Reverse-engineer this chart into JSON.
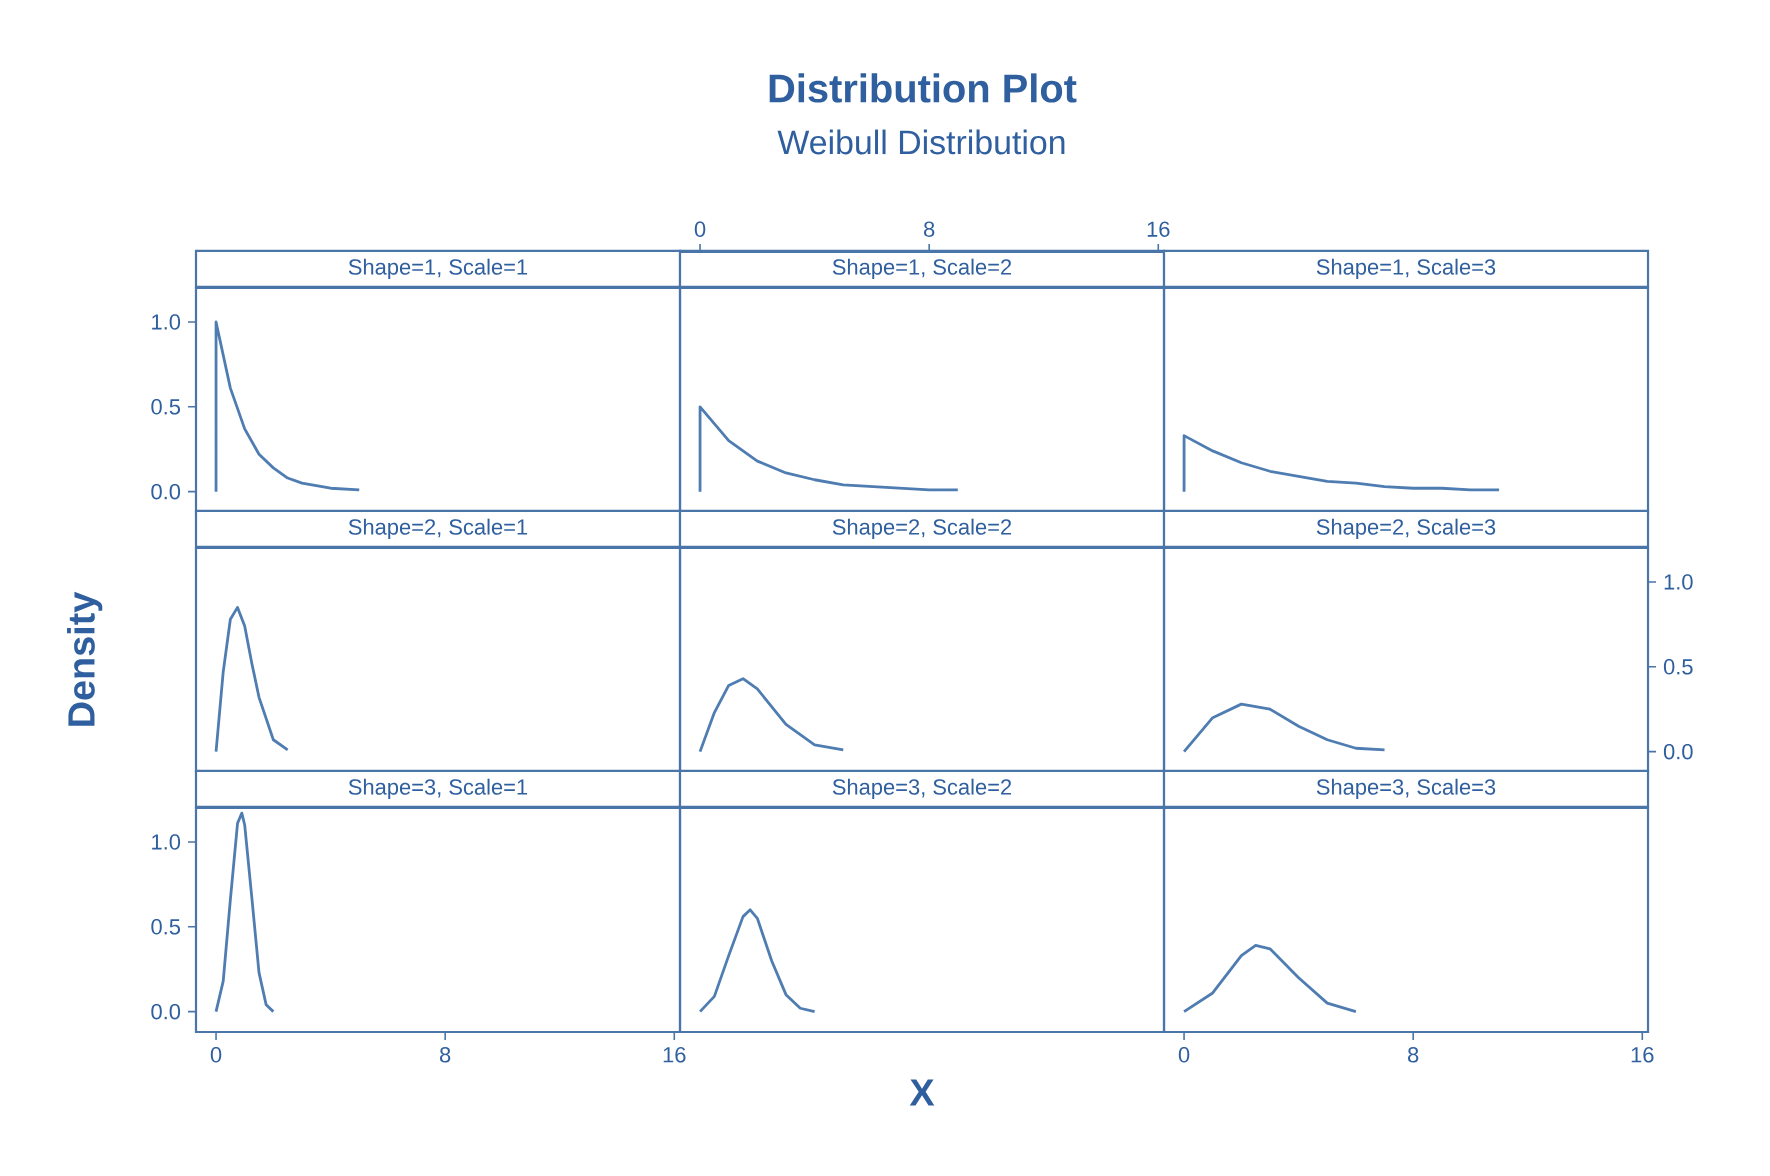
{
  "chart_data": [
    {
      "type": "line",
      "title": "Shape=1, Scale=1",
      "annotations": [
        "Distribution Plot",
        "Weibull Distribution"
      ],
      "x": [
        0,
        0,
        0.5,
        1,
        1.5,
        2,
        2.5,
        3,
        4,
        5
      ],
      "values": [
        0,
        1.0,
        0.61,
        0.37,
        0.22,
        0.14,
        0.08,
        0.05,
        0.02,
        0.01
      ],
      "color": "#4f7db2",
      "xlim": [
        -0.7,
        16.2
      ],
      "ylim": [
        -0.12,
        1.2
      ],
      "yticks": [
        {
          "value": 0,
          "label": "0.0"
        },
        {
          "value": 0.5,
          "label": "0.5"
        },
        {
          "value": 1,
          "label": "1.0"
        }
      ],
      "tick_labels": "y"
    },
    {
      "type": "line",
      "title": "Shape=1, Scale=2",
      "x": [
        0,
        0,
        1,
        2,
        3,
        4,
        5,
        6,
        7,
        8,
        9
      ],
      "values": [
        0,
        0.5,
        0.3,
        0.18,
        0.11,
        0.07,
        0.04,
        0.03,
        0.02,
        0.01,
        0.01
      ],
      "color": "#4f7db2",
      "xlim": [
        -0.7,
        16.2
      ],
      "ylim": [
        -0.12,
        1.2
      ],
      "x2lim": [
        -0.7,
        16.2
      ],
      "x2ticks": [
        0,
        8,
        16
      ],
      "tick_labels": false
    },
    {
      "type": "line",
      "title": "Shape=1, Scale=3",
      "x": [
        0,
        0,
        1,
        2,
        3,
        4,
        5,
        6,
        7,
        8,
        9,
        10,
        11
      ],
      "values": [
        0,
        0.33,
        0.24,
        0.17,
        0.12,
        0.09,
        0.06,
        0.05,
        0.03,
        0.02,
        0.02,
        0.01,
        0.01
      ],
      "color": "#4f7db2",
      "xlim": [
        -0.7,
        16.2
      ],
      "ylim": [
        -0.12,
        1.2
      ],
      "tick_labels": false
    },
    {
      "type": "line",
      "title": "Shape=2, Scale=1",
      "ylabel": "Density",
      "x": [
        0,
        0.25,
        0.5,
        0.75,
        1,
        1.25,
        1.5,
        2,
        2.5
      ],
      "values": [
        0,
        0.47,
        0.78,
        0.85,
        0.74,
        0.52,
        0.32,
        0.07,
        0.01
      ],
      "color": "#4f7db2",
      "xlim": [
        -0.7,
        16.2
      ],
      "ylim": [
        -0.12,
        1.2
      ],
      "tick_labels": false
    },
    {
      "type": "line",
      "title": "Shape=2, Scale=2",
      "x": [
        0,
        0.5,
        1,
        1.5,
        2,
        3,
        4,
        5
      ],
      "values": [
        0,
        0.23,
        0.39,
        0.43,
        0.37,
        0.16,
        0.04,
        0.01
      ],
      "color": "#4f7db2",
      "xlim": [
        -0.7,
        16.2
      ],
      "ylim": [
        -0.12,
        1.2
      ],
      "tick_labels": false
    },
    {
      "type": "line",
      "title": "Shape=2, Scale=3",
      "x": [
        0,
        1,
        2,
        3,
        4,
        5,
        6,
        7
      ],
      "series": [
        {
          "axis": "y2",
          "color": "#4f7db2",
          "values": [
            0,
            0.2,
            0.28,
            0.25,
            0.15,
            0.07,
            0.02,
            0.01
          ]
        }
      ],
      "xlim": [
        -0.7,
        16.2
      ],
      "y2lim": [
        -0.12,
        1.2
      ],
      "y2ticks": [
        {
          "value": 0,
          "label": "0.0"
        },
        {
          "value": 0.5,
          "label": "0.5"
        },
        {
          "value": 1,
          "label": "1.0"
        }
      ],
      "tick_labels": false
    },
    {
      "type": "line",
      "title": "Shape=3, Scale=1",
      "x": [
        0,
        0.25,
        0.5,
        0.75,
        0.9,
        1,
        1.25,
        1.5,
        1.75,
        2
      ],
      "values": [
        0,
        0.18,
        0.66,
        1.11,
        1.17,
        1.1,
        0.67,
        0.23,
        0.04,
        0
      ],
      "color": "#4f7db2",
      "xlim": [
        -0.7,
        16.2
      ],
      "ylim": [
        -0.12,
        1.2
      ],
      "xticks": [
        0,
        8,
        16
      ],
      "yticks": [
        {
          "value": 0,
          "label": "0.0"
        },
        {
          "value": 0.5,
          "label": "0.5"
        },
        {
          "value": 1,
          "label": "1.0"
        }
      ]
    },
    {
      "type": "line",
      "title": "Shape=3, Scale=2",
      "xlabel": "X",
      "x": [
        0,
        0.5,
        1,
        1.5,
        1.75,
        2,
        2.5,
        3,
        3.5,
        4
      ],
      "values": [
        0,
        0.09,
        0.33,
        0.56,
        0.6,
        0.55,
        0.3,
        0.1,
        0.02,
        0
      ],
      "color": "#4f7db2",
      "xlim": [
        -0.7,
        16.2
      ],
      "ylim": [
        -0.12,
        1.2
      ],
      "tick_labels": false
    },
    {
      "type": "line",
      "title": "Shape=3, Scale=3",
      "x": [
        0,
        1,
        2,
        2.5,
        3,
        4,
        5,
        6
      ],
      "values": [
        0,
        0.11,
        0.33,
        0.39,
        0.37,
        0.2,
        0.05,
        0
      ],
      "color": "#4f7db2",
      "xlim": [
        -0.7,
        16.2
      ],
      "ylim": [
        -0.12,
        1.2
      ],
      "xticks": [
        0,
        8,
        16
      ],
      "tick_labels": "x"
    }
  ]
}
